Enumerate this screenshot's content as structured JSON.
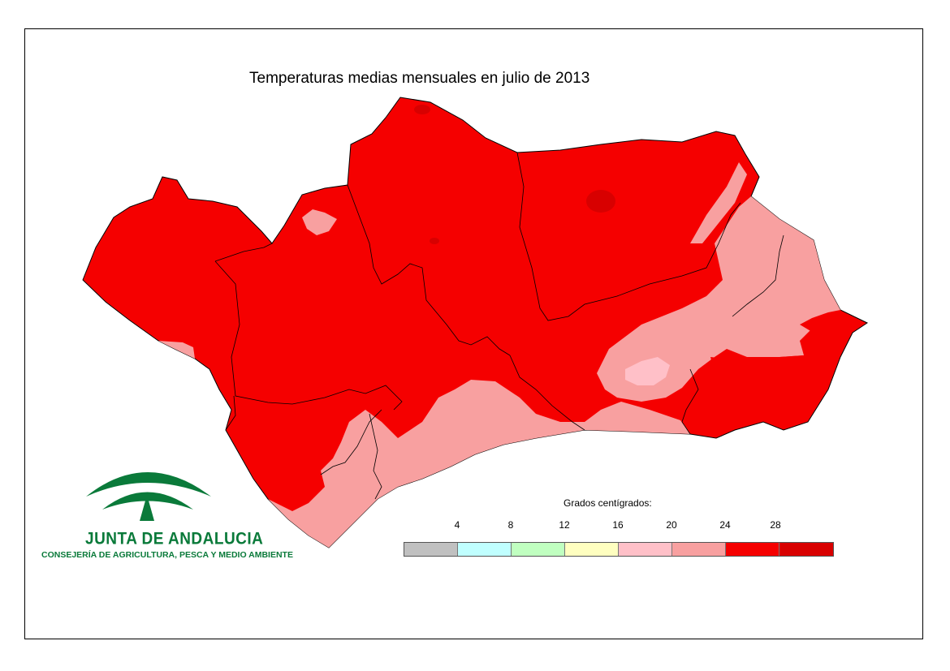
{
  "title": "Temperaturas medias mensuales en julio de 2013",
  "legend": {
    "title": "Grados centígrados:",
    "ticks": [
      "4",
      "8",
      "12",
      "16",
      "20",
      "24",
      "28"
    ],
    "colors": [
      "#c0c0c0",
      "#c0ffff",
      "#c0ffc0",
      "#ffffc0",
      "#ffc0c8",
      "#f8a0a0",
      "#f50000",
      "#d80000"
    ]
  },
  "map_colors": {
    "above_28": "#d80000",
    "24_28": "#f50000",
    "20_24": "#f8a0a0",
    "16_20": "#ffc0c8"
  },
  "logo": {
    "name": "JUNTA DE ANDALUCIA",
    "subtitle": "CONSEJERÍA DE AGRICULTURA, PESCA Y MEDIO AMBIENTE",
    "color": "#0a7a3a"
  }
}
